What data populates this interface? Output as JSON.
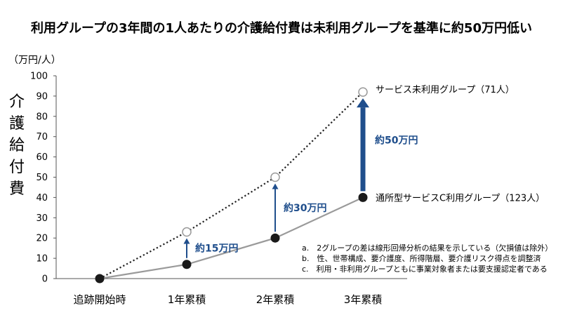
{
  "title": "利用グループの3年間の1人あたりの介護給付費は未利用グループを基準に約50万円低い",
  "chart_data": {
    "type": "line",
    "ylabel": "介護給付費",
    "unit": "（万円/人）",
    "ylim": [
      0,
      100
    ],
    "yticks": [
      "0",
      "10",
      "20",
      "30",
      "40",
      "50",
      "60",
      "70",
      "80",
      "90",
      "100"
    ],
    "categories": [
      "追跡開始時",
      "1年累積",
      "2年累積",
      "3年累積"
    ],
    "series": [
      {
        "name": "サービス未利用グループ（71人）",
        "values": [
          0,
          23,
          50,
          92
        ],
        "style": "dotted",
        "marker": "open-circle",
        "color": "#222222"
      },
      {
        "name": "通所型サービスC利用グループ（123人）",
        "values": [
          0,
          7,
          20,
          40
        ],
        "style": "solid",
        "marker": "filled-circle",
        "color": "#9a9a9a"
      }
    ],
    "annotations": [
      {
        "text": "約15万円",
        "category": "1年累積"
      },
      {
        "text": "約30万円",
        "category": "2年累積"
      },
      {
        "text": "約50万円",
        "category": "3年累積"
      }
    ],
    "grid": false,
    "arrow_color": "#1f4e8c"
  },
  "notes": [
    "a.　2グループの差は線形回帰分析の結果を示している（欠損値は除外）",
    "b.　性、世帯構成、要介護度、所得階層、要介護リスク得点を調整済",
    "c.　利用・非利用グループともに事業対象者または要支援認定者である"
  ]
}
